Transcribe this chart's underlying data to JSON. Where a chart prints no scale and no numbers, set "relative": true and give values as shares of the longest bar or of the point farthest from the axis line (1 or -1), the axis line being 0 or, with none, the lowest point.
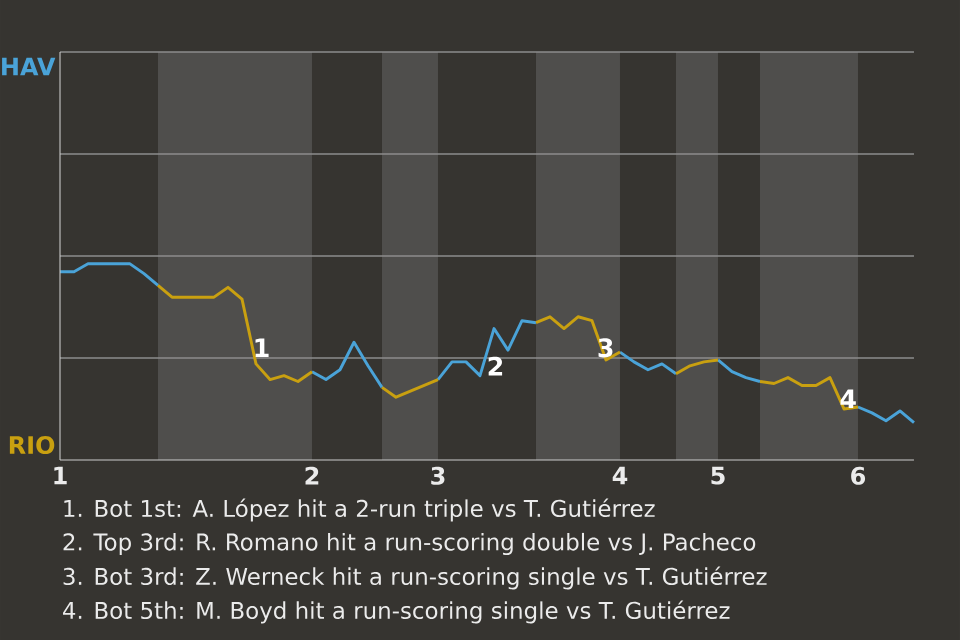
{
  "chart_data": {
    "type": "line",
    "relative": true,
    "categories": [
      "1",
      null,
      null,
      null,
      null,
      null,
      null,
      null,
      null,
      null,
      null,
      null,
      null,
      null,
      null,
      null,
      null,
      null,
      "2",
      null,
      null,
      null,
      null,
      null,
      null,
      null,
      null,
      "3",
      null,
      null,
      null,
      null,
      null,
      null,
      null,
      null,
      null,
      null,
      null,
      null,
      "4",
      null,
      null,
      null,
      null,
      null,
      null,
      "5",
      null,
      null,
      null,
      null,
      null,
      null,
      null,
      null,
      null,
      "6",
      null,
      null,
      null,
      null
    ],
    "ref_lines": [
      {
        "axis": "y",
        "value": 0.52,
        "color": "#8c8c8c"
      },
      {
        "axis": "y",
        "value": 1.04,
        "color": "#8c8c8c"
      },
      {
        "axis": "y",
        "value": 1.56,
        "color": "#8c8c8c"
      }
    ],
    "series": [
      {
        "color": "#4aa3d8",
        "values": [
          0.96,
          0.96,
          1.0,
          1.0,
          1.0,
          1.0,
          0.95,
          0.89,
          null,
          null,
          null,
          null,
          null,
          null,
          null,
          null,
          null,
          null,
          0.45,
          0.41,
          0.46,
          0.6,
          0.48,
          0.37,
          null,
          null,
          null,
          0.41,
          0.5,
          0.5,
          0.43,
          0.67,
          0.56,
          0.71,
          0.7,
          null,
          null,
          null,
          null,
          null,
          0.55,
          0.5,
          0.46,
          0.49,
          0.44,
          null,
          null,
          0.51,
          0.45,
          0.42,
          0.4,
          null,
          null,
          null,
          null,
          null,
          null,
          0.27,
          0.24,
          0.2,
          0.25,
          0.19
        ]
      },
      {
        "color": "#c9a010",
        "values": [
          null,
          null,
          null,
          null,
          null,
          null,
          null,
          0.89,
          0.83,
          0.83,
          0.83,
          0.83,
          0.88,
          0.82,
          0.49,
          0.41,
          0.43,
          0.4,
          0.45,
          null,
          null,
          null,
          null,
          0.37,
          0.32,
          0.35,
          0.38,
          0.41,
          null,
          null,
          null,
          null,
          null,
          null,
          0.7,
          0.73,
          0.67,
          0.73,
          0.71,
          0.51,
          0.55,
          null,
          null,
          null,
          0.44,
          0.48,
          0.5,
          0.51,
          null,
          null,
          0.4,
          0.39,
          0.42,
          0.38,
          0.38,
          0.42,
          0.26,
          0.27,
          null,
          null,
          null,
          null
        ]
      }
    ],
    "annotations": [
      "HAV",
      "RIO",
      "1",
      "2",
      "3",
      "4",
      "1. Bot 1st: A. López hit a 2-run triple vs T. Gutiérrez",
      "2. Top 3rd: R. Romano hit a run-scoring double vs J. Pacheco",
      "3. Bot 3rd: Z. Werneck hit a run-scoring single vs T. Gutiérrez",
      "4. Bot 5th: M. Boyd hit a run-scoring single vs T. Gutiérrez"
    ]
  }
}
